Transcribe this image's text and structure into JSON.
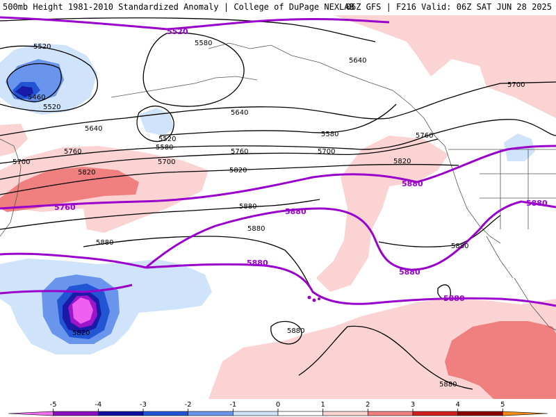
{
  "header": {
    "left_title": "500mb Height 1981-2010 Standardized Anomaly | College of DuPage NEXLAB",
    "right_title": "06Z GFS | F216 Valid: 06Z SAT JUN 28 2025"
  },
  "map": {
    "contour_labels": {
      "l5520a": "5520",
      "l5580a": "5580",
      "l5640a": "5640",
      "l5520b": "5520",
      "l5460": "5460",
      "l5520c": "5520",
      "l5640b": "5640",
      "l5520d": "5520",
      "l5580b": "5580",
      "l5640c": "5640",
      "l5580c": "5580",
      "l5700a": "5700",
      "l5760a": "5760",
      "l5700b": "5700",
      "l5760b": "5760",
      "l5700c": "5700",
      "l5820a": "5820",
      "l5820b": "5820",
      "l5820c": "5820",
      "l5760c": "5760",
      "l5880a": "5880",
      "l5880b": "5880",
      "l5880c": "5880",
      "l5880d": "5880",
      "l5880e": "5880",
      "l5880f": "5880",
      "l5880g": "5880",
      "l5880h": "5880",
      "l5700d": "5700",
      "l5760d": "5760",
      "l5880i": "5880",
      "l5880j": "5880",
      "l5880k": "5880",
      "l5880l": "5880",
      "l5820d": "5820"
    },
    "colors": {
      "contour": "#000000",
      "climo_contour": "#9900cc",
      "neg1": "#cfe3fb",
      "neg2": "#6a95ec",
      "neg3": "#2155d4",
      "neg4": "#1a1aa8",
      "neg5": "#9a16c8",
      "neg6": "#f060f0",
      "pos1": "#fbd3d3",
      "pos2": "#f08080",
      "pos3": "#e24848"
    }
  },
  "colorbar": {
    "ticks": [
      "-5",
      "-4",
      "-3",
      "-2",
      "-1",
      "0",
      "1",
      "2",
      "3",
      "4",
      "5"
    ],
    "colors": [
      "#f070f0",
      "#8a10c0",
      "#1010a0",
      "#1f55d4",
      "#6a95ec",
      "#cfe3fb",
      "#ffffff",
      "#fbd3d3",
      "#f08080",
      "#d02020",
      "#8a0000",
      "#f08c1a"
    ]
  }
}
